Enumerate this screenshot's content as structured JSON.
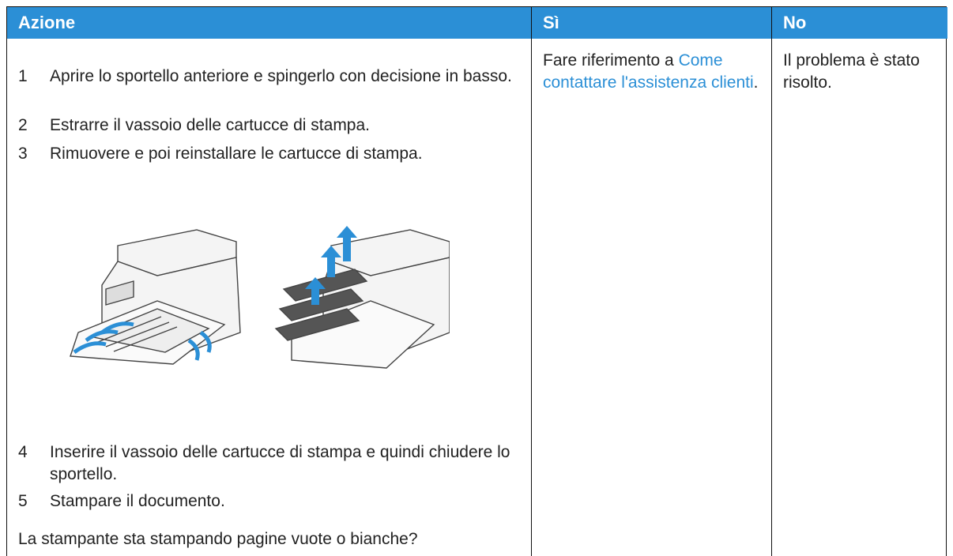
{
  "table": {
    "headers": [
      "Azione",
      "Sì",
      "No"
    ],
    "steps_before": [
      {
        "number": "1",
        "text": "Aprire lo sportello anteriore e spingerlo con decisione in basso."
      },
      {
        "number": "2",
        "text": "Estrarre il vassoio delle cartucce di stampa."
      },
      {
        "number": "3",
        "text": "Rimuovere e poi reinstallare le cartucce di stampa."
      }
    ],
    "steps_after": [
      {
        "number": "4",
        "text": "Inserire il vassoio delle cartucce di stampa e quindi chiudere lo sportello."
      },
      {
        "number": "5",
        "text": "Stampare il documento."
      }
    ],
    "question": "La stampante sta stampando pagine vuote o bianche?",
    "yes": {
      "prefix": "Fare riferimento a ",
      "link": "Come contattare l'assistenza clienti",
      "suffix": "."
    },
    "no": "Il problema è stato risolto."
  }
}
